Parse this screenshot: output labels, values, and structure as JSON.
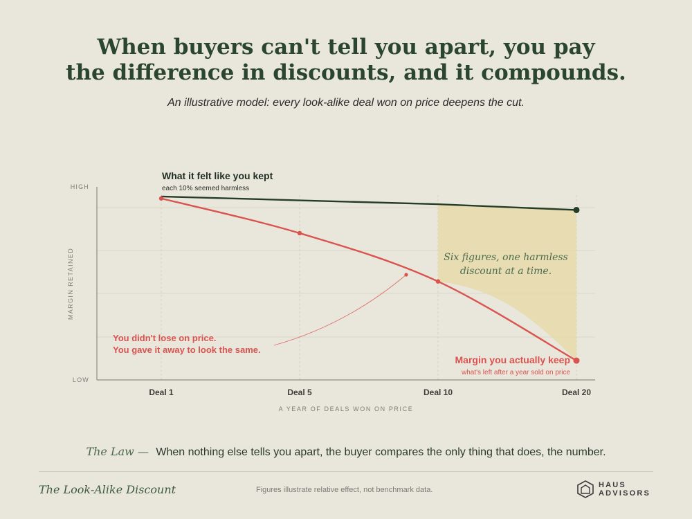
{
  "title_line1": "When buyers can't tell you apart, you pay",
  "title_line2": "the difference in discounts, and it compounds.",
  "subtitle": "An illustrative model: every look-alike deal won on price deepens the cut.",
  "chart_data": {
    "type": "line",
    "x": [
      "Deal 1",
      "Deal 5",
      "Deal 10",
      "Deal 20"
    ],
    "ylim": [
      0,
      100
    ],
    "ylabel": "MARGIN RETAINED",
    "xlabel": "A YEAR OF DEALS WON ON PRICE",
    "ytick_high": "HIGH",
    "ytick_low": "LOW",
    "series": [
      {
        "name": "What it felt like you kept",
        "sublabel": "each 10% seemed harmless",
        "values": [
          95,
          93,
          91,
          88
        ],
        "color": "#243c28"
      },
      {
        "name": "Margin you actually keep",
        "sublabel": "what's left after a year sold on price",
        "values": [
          94,
          76,
          51,
          10
        ],
        "color": "#d9534f"
      }
    ],
    "gap_annotation": [
      "Six figures, one harmless",
      "discount at a time."
    ],
    "callout": [
      "You didn't lose on price.",
      "You gave it away to look the same."
    ],
    "gap_fill_color": "#e6d9aa"
  },
  "law_label": "The Law —",
  "law_text": "When nothing else tells you apart, the buyer compares the only thing that does, the number.",
  "footer_title": "The Look-Alike Discount",
  "footer_note": "Figures illustrate relative effect, not benchmark data.",
  "brand_top": "HAUS",
  "brand_bottom": "ADVISORS"
}
